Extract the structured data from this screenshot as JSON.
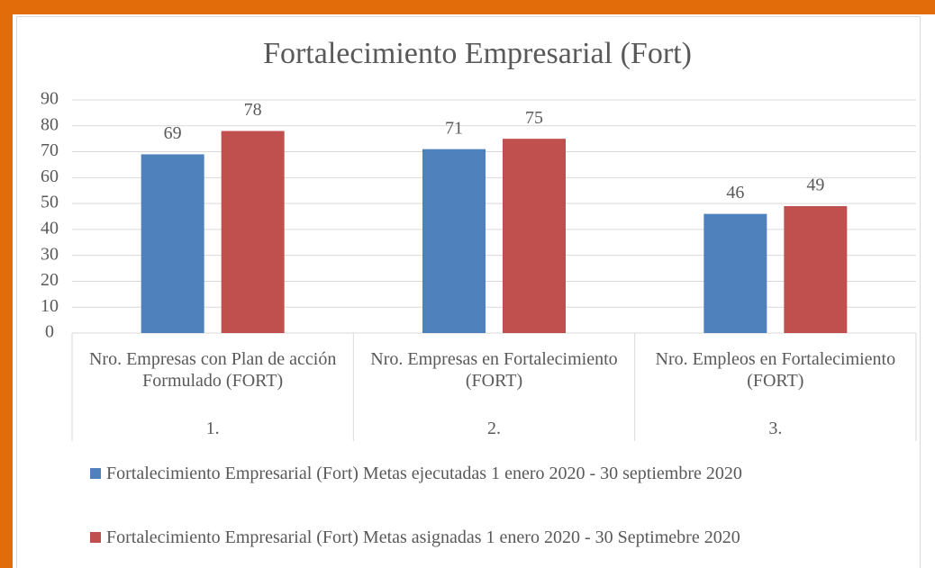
{
  "chart_data": {
    "type": "bar",
    "title": "Fortalecimiento Empresarial (Fort)",
    "categories": [
      "Nro. Empresas con Plan de acción Formulado (FORT)",
      "Nro. Empresas en Fortalecimiento (FORT)",
      "Nro. Empleos en Fortalecimiento (FORT)"
    ],
    "category_groups": [
      "1.",
      "2.",
      "3."
    ],
    "series": [
      {
        "name": "Fortalecimiento Empresarial (Fort) Metas ejecutadas 1 enero 2020 - 30 septiembre 2020",
        "color": "#4f81bd",
        "values": [
          69,
          71,
          46
        ]
      },
      {
        "name": "Fortalecimiento Empresarial (Fort) Metas asignadas 1 enero 2020 - 30 Septimebre 2020",
        "color": "#c0504d",
        "values": [
          78,
          75,
          49
        ]
      }
    ],
    "ylim": [
      0,
      90
    ],
    "yticks": [
      0,
      10,
      20,
      30,
      40,
      50,
      60,
      70,
      80,
      90
    ],
    "grid": true,
    "legend": "bottom"
  }
}
